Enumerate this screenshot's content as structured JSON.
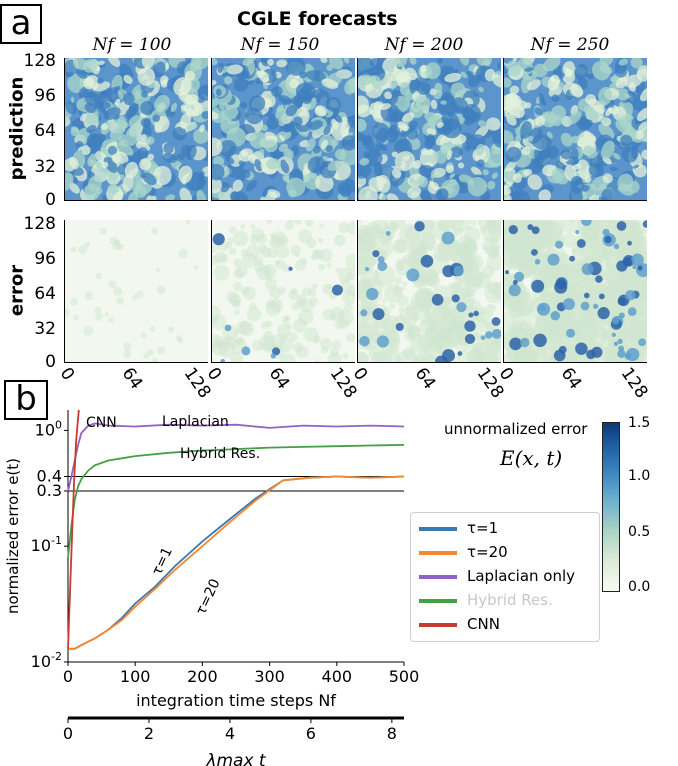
{
  "panel_a": {
    "tag": "a",
    "title": "CGLE forecasts",
    "columns": [
      "N_f = 100",
      "N_f = 150",
      "N_f = 200",
      "N_f = 250"
    ],
    "column_labels": [
      "Nf = 100",
      "Nf = 150",
      "Nf = 200",
      "Nf = 250"
    ],
    "rows": [
      "prediction",
      "error"
    ],
    "y_ticks": [
      "128",
      "96",
      "64",
      "32",
      "0"
    ],
    "x_ticks": [
      "0",
      "64",
      "128"
    ],
    "colorbar": {
      "label": "unnormalized error",
      "sublabel": "E(x, t)",
      "ticks": [
        "1.5",
        "1.0",
        "0.5",
        "0.0"
      ]
    }
  },
  "panel_b": {
    "tag": "b",
    "xlabel": "integration time steps Nf",
    "ylabel": "normalized error e(t)",
    "secondary_xlabel": "λmax t",
    "secondary_x_ticks": [
      "0",
      "2",
      "4",
      "6",
      "8"
    ],
    "x_ticks": [
      "0",
      "100",
      "200",
      "300",
      "400",
      "500"
    ],
    "y_ticks": [
      "10^0",
      "0.4",
      "0.3",
      "10^-1",
      "10^-2"
    ],
    "annotations": [
      "CNN",
      "Laplacian",
      "Hybrid Res.",
      "τ=1",
      "τ=20"
    ],
    "legend": [
      "τ=1",
      "τ=20",
      "Laplacian only",
      "Hybrid Res.",
      "CNN"
    ]
  },
  "colors": {
    "tau1": "#3a78b0",
    "tau20": "#f5872e",
    "laplacian": "#8f62c4",
    "hybrid": "#46a046",
    "cnn": "#c93a32",
    "field_blue": "#5b95cc",
    "field_light": "#dcebd6"
  },
  "chart_data": {
    "type": "line",
    "title": "",
    "xlabel": "integration time steps Nf",
    "ylabel": "normalized error e(t)",
    "xlim": [
      0,
      500
    ],
    "ylim": [
      0.01,
      1.5
    ],
    "yscale": "log",
    "hlines": [
      0.4,
      0.3
    ],
    "series": [
      {
        "name": "τ=1",
        "x": [
          0,
          10,
          20,
          40,
          60,
          80,
          100,
          130,
          160,
          200,
          240,
          280,
          320,
          360,
          400,
          450,
          500
        ],
        "y": [
          0.013,
          0.013,
          0.014,
          0.016,
          0.019,
          0.024,
          0.032,
          0.045,
          0.068,
          0.11,
          0.17,
          0.26,
          0.37,
          0.39,
          0.4,
          0.39,
          0.4
        ]
      },
      {
        "name": "τ=20",
        "x": [
          0,
          10,
          20,
          40,
          60,
          80,
          100,
          130,
          160,
          200,
          240,
          280,
          320,
          360,
          400,
          450,
          500
        ],
        "y": [
          0.013,
          0.013,
          0.014,
          0.016,
          0.019,
          0.023,
          0.03,
          0.043,
          0.063,
          0.1,
          0.16,
          0.25,
          0.37,
          0.39,
          0.4,
          0.39,
          0.4
        ]
      },
      {
        "name": "Laplacian only",
        "x": [
          0,
          5,
          10,
          15,
          20,
          30,
          40,
          60,
          100,
          150,
          200,
          250,
          300,
          350,
          400,
          450,
          500
        ],
        "y": [
          0.3,
          0.4,
          0.55,
          0.75,
          0.95,
          1.1,
          1.15,
          1.1,
          1.08,
          1.12,
          1.1,
          1.12,
          1.05,
          1.1,
          1.08,
          1.1,
          1.08
        ]
      },
      {
        "name": "Hybrid Res.",
        "x": [
          0,
          5,
          10,
          15,
          20,
          30,
          40,
          60,
          100,
          150,
          200,
          250,
          300,
          350,
          400,
          450,
          500
        ],
        "y": [
          0.08,
          0.15,
          0.25,
          0.33,
          0.38,
          0.45,
          0.5,
          0.55,
          0.6,
          0.64,
          0.67,
          0.69,
          0.71,
          0.72,
          0.73,
          0.74,
          0.75
        ]
      },
      {
        "name": "CNN",
        "x": [
          0,
          3,
          6,
          9,
          12,
          16
        ],
        "y": [
          0.013,
          0.04,
          0.12,
          0.35,
          0.8,
          1.6
        ]
      }
    ]
  }
}
